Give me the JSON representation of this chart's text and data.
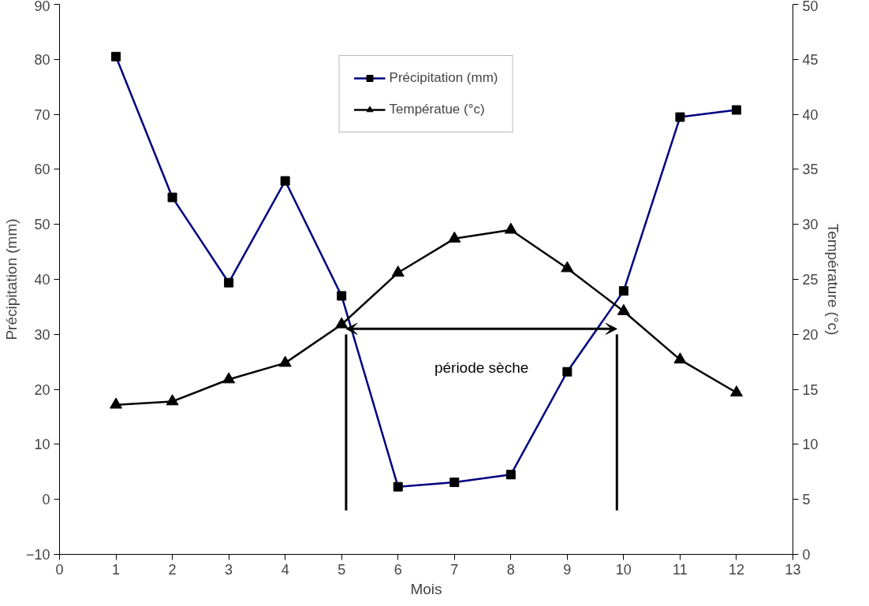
{
  "chart_data": {
    "type": "line",
    "xlabel": "Mois",
    "ylabel": "Précipitation (mm)",
    "y2label": "Température (°c)",
    "x": [
      1,
      2,
      3,
      4,
      5,
      6,
      7,
      8,
      9,
      10,
      11,
      12
    ],
    "series": [
      {
        "name": "Précipitation (mm)",
        "color": "#000080",
        "marker": "square",
        "values": [
          80.5,
          54.9,
          39.4,
          57.9,
          37.0,
          2.3,
          3.1,
          4.5,
          23.2,
          37.9,
          69.5,
          70.8
        ]
      },
      {
        "name": "Températue (°c)",
        "color": "#000000",
        "marker": "triangle",
        "axis": "y2",
        "values": [
          13.6,
          13.9,
          15.9,
          17.4,
          20.9,
          25.6,
          28.7,
          29.5,
          26.0,
          22.1,
          17.7,
          14.7
        ]
      }
    ],
    "xlim": [
      0,
      13
    ],
    "xticks": [
      0,
      1,
      2,
      3,
      4,
      5,
      6,
      7,
      8,
      9,
      10,
      11,
      12,
      13
    ],
    "ylim": [
      -10,
      90
    ],
    "yticks": [
      -10,
      0,
      10,
      20,
      30,
      40,
      50,
      60,
      70,
      80,
      90
    ],
    "y2lim": [
      0,
      50
    ],
    "y2ticks": [
      0,
      5,
      10,
      15,
      20,
      25,
      30,
      35,
      40,
      45,
      50
    ],
    "ref_lines": [
      {
        "axis": "x",
        "value": 5.08,
        "label": null
      },
      {
        "axis": "x",
        "value": 9.88,
        "label": null
      }
    ],
    "annotations": [
      "période sèche"
    ],
    "grid": false,
    "legend": "top"
  }
}
